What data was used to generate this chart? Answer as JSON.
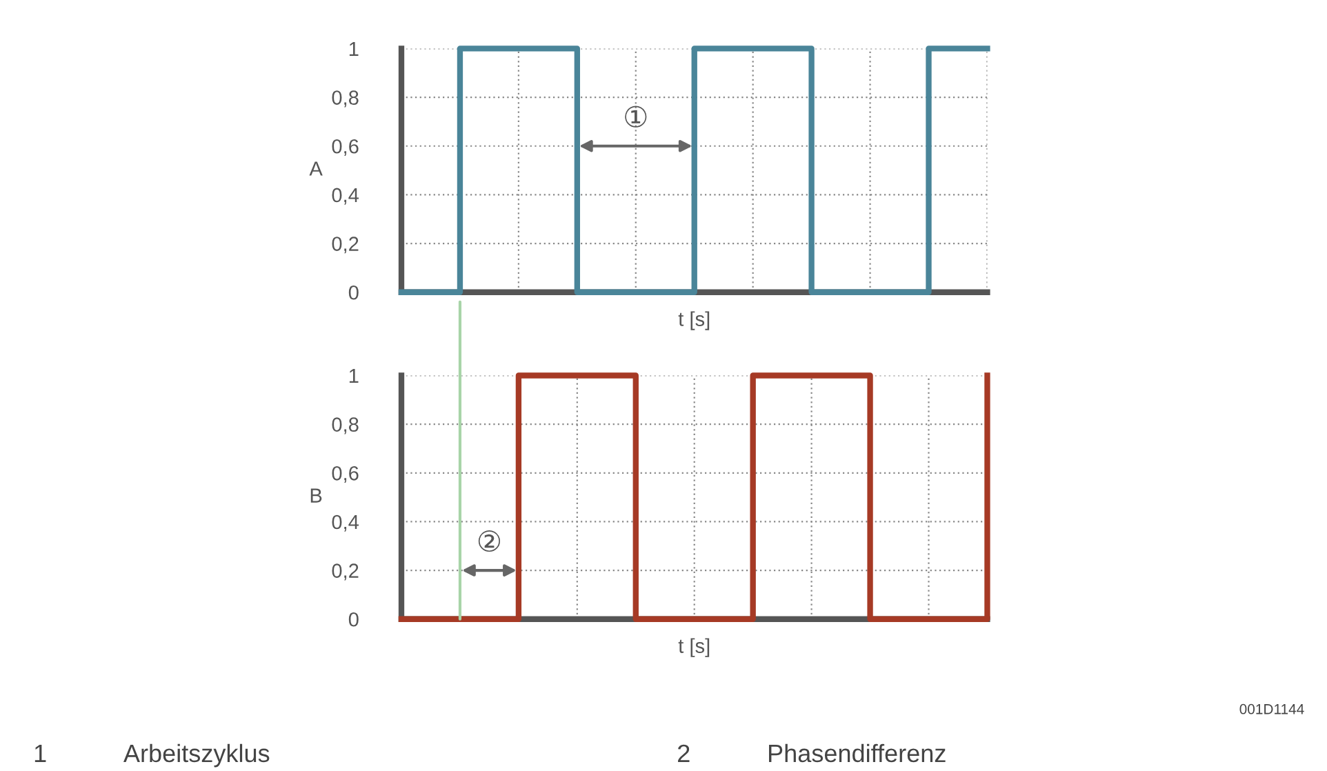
{
  "chart_data": [
    {
      "type": "step",
      "ylabel": "A",
      "xlabel": "t [s]",
      "ylim": [
        0,
        1
      ],
      "categories": [
        null,
        null,
        null,
        null,
        null,
        null,
        null,
        null,
        null,
        null,
        null
      ],
      "yticks": [
        {
          "value": 0,
          "label": "0"
        },
        {
          "value": 0.2,
          "label": "0,2"
        },
        {
          "value": 0.4,
          "label": "0,4"
        },
        {
          "value": 0.6,
          "label": "0,6"
        },
        {
          "value": 0.8,
          "label": "0,8"
        },
        {
          "value": 1,
          "label": "1"
        }
      ],
      "tick_labels": "y",
      "grid": true,
      "series": [
        {
          "color": "#4a8599",
          "values": [
            0,
            1,
            1,
            0,
            0,
            1,
            1,
            0,
            0,
            1,
            1
          ]
        }
      ],
      "annotations": [
        "①"
      ]
    },
    {
      "type": "step",
      "ylabel": "B",
      "xlabel": "t [s]",
      "ylim": [
        0,
        1
      ],
      "categories": [
        null,
        null,
        null,
        null,
        null,
        null,
        null,
        null,
        null,
        null,
        null
      ],
      "yticks": [
        {
          "value": 0,
          "label": "0"
        },
        {
          "value": 0.2,
          "label": "0,2"
        },
        {
          "value": 0.4,
          "label": "0,4"
        },
        {
          "value": 0.6,
          "label": "0,6"
        },
        {
          "value": 0.8,
          "label": "0,8"
        },
        {
          "value": 1,
          "label": "1"
        }
      ],
      "tick_labels": "y",
      "grid": true,
      "series": [
        {
          "color": "#a63a25",
          "values": [
            0,
            0,
            1,
            1,
            0,
            0,
            1,
            1,
            0,
            0,
            1
          ]
        }
      ],
      "annotations": [
        "②",
        "001D1144",
        "1",
        "Arbeitszyklus",
        "2",
        "Phasendifferenz"
      ]
    }
  ]
}
